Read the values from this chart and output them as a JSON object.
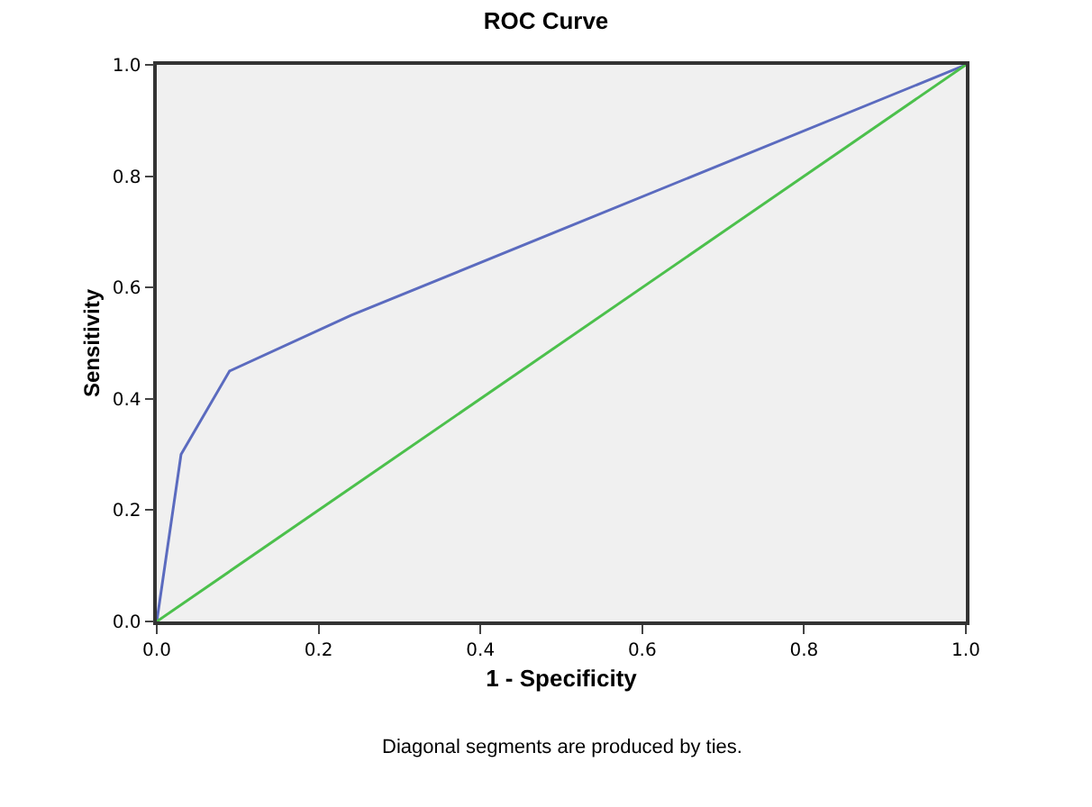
{
  "chart_data": {
    "type": "line",
    "title": "ROC Curve",
    "xlabel": "1 - Specificity",
    "ylabel": "Sensitivity",
    "series": [
      {
        "x": [
          0,
          0.03,
          0.09,
          0.24,
          1.0
        ],
        "values": [
          0,
          0.3,
          0.45,
          0.55,
          1.0
        ],
        "color": "#5b6bbf"
      },
      {
        "x": [
          0,
          1.0
        ],
        "values": [
          0,
          1.0
        ],
        "color": "#4cc04c"
      }
    ],
    "xlim": [
      0,
      1.0
    ],
    "ylim": [
      0,
      1.0
    ],
    "xticks": [
      {
        "value": 0,
        "label": "0.0"
      },
      0.2,
      0.4,
      0.6,
      0.8,
      {
        "value": 1.0,
        "label": "1.0"
      }
    ],
    "yticks": [
      {
        "value": 0,
        "label": "0.0"
      },
      0.2,
      0.4,
      0.6,
      0.8,
      {
        "value": 1.0,
        "label": "1.0"
      }
    ],
    "grid": false,
    "marker": "none",
    "line_style": "solid",
    "annotations": [
      "Diagonal segments are produced by ties."
    ]
  }
}
